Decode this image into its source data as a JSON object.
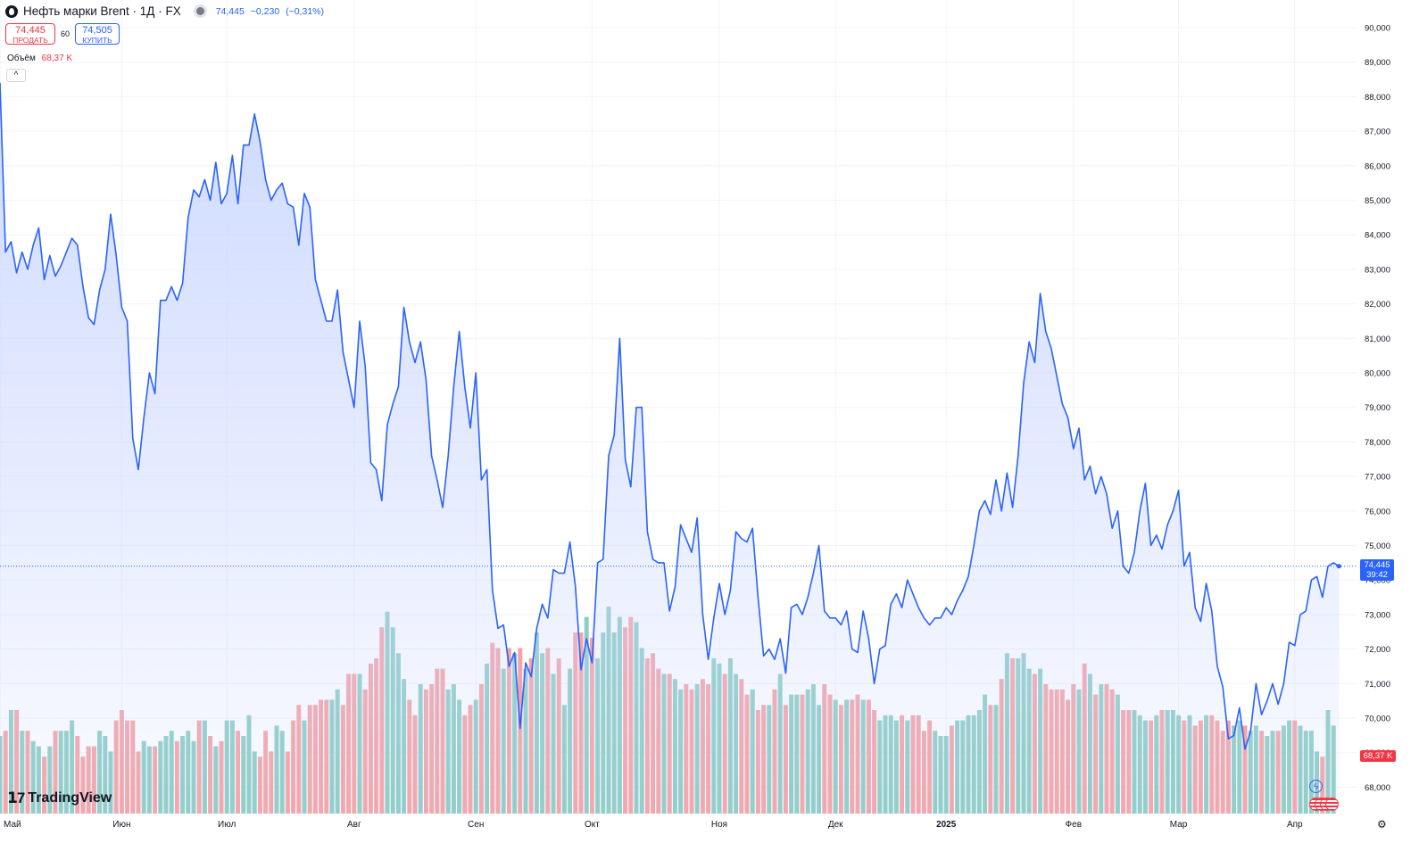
{
  "header": {
    "symbol_title": "Нефть марки Brent · 1Д · FX",
    "last_price": "74,445",
    "change": "−0,230",
    "change_pct": "(−0,31%)"
  },
  "trade": {
    "sell_price": "74,445",
    "sell_label": "ПРОДАТЬ",
    "spread": "60",
    "buy_price": "74,505",
    "buy_label": "КУПИТЬ"
  },
  "volume": {
    "label": "Объём",
    "value": "68,37 K"
  },
  "collapse_label": "^",
  "logo_text": "TradingView",
  "price_label": {
    "value": "74,445",
    "countdown": "39:42"
  },
  "volume_label": "68,37 K",
  "colors": {
    "line": "#2962ff",
    "area_top": "#ccd8ff",
    "vol_up": "#8ccdc4",
    "vol_down": "#f5a3a6",
    "grid": "#f0f3fa"
  },
  "chart_data": {
    "type": "area",
    "title": "Нефть марки Brent",
    "xlabel": "",
    "ylabel": "",
    "ylim": [
      67.2,
      90.3
    ],
    "y_ticks": [
      "90,000",
      "89,000",
      "88,000",
      "87,000",
      "86,000",
      "85,000",
      "84,000",
      "83,000",
      "82,000",
      "81,000",
      "80,000",
      "79,000",
      "78,000",
      "77,000",
      "76,000",
      "75,000",
      "74,000",
      "73,000",
      "72,000",
      "71,000",
      "70,000",
      "69,000",
      "68,000"
    ],
    "x_ticks": [
      {
        "label": "Май",
        "index": 0
      },
      {
        "label": "Июн",
        "index": 22
      },
      {
        "label": "Июл",
        "index": 41
      },
      {
        "label": "Авг",
        "index": 64
      },
      {
        "label": "Сен",
        "index": 86
      },
      {
        "label": "Окт",
        "index": 107
      },
      {
        "label": "Ноя",
        "index": 130
      },
      {
        "label": "Дек",
        "index": 151
      },
      {
        "label": "2025",
        "index": 171
      },
      {
        "label": "Фев",
        "index": 194
      },
      {
        "label": "Мар",
        "index": 213
      },
      {
        "label": "Апр",
        "index": 234
      }
    ],
    "grid": true,
    "series": [
      {
        "values": [
          88.4,
          83.5,
          83.8,
          82.9,
          83.5,
          83.0,
          83.7,
          84.2,
          82.7,
          83.4,
          82.8,
          83.1,
          83.5,
          83.9,
          83.7,
          82.5,
          81.6,
          81.4,
          82.4,
          83.0,
          84.6,
          83.4,
          81.9,
          81.5,
          78.1,
          77.2,
          78.7,
          80.0,
          79.4,
          82.1,
          82.1,
          82.5,
          82.1,
          82.6,
          84.5,
          85.3,
          85.1,
          85.6,
          85.0,
          86.1,
          84.9,
          85.2,
          86.3,
          84.9,
          86.6,
          86.6,
          87.5,
          86.7,
          85.6,
          85.0,
          85.3,
          85.5,
          84.9,
          84.8,
          83.7,
          85.2,
          84.8,
          82.7,
          82.1,
          81.5,
          81.5,
          82.4,
          80.6,
          79.8,
          79.0,
          81.5,
          80.2,
          77.4,
          77.2,
          76.3,
          78.5,
          79.1,
          79.6,
          81.9,
          80.9,
          80.3,
          80.9,
          79.8,
          77.6,
          76.9,
          76.1,
          77.6,
          79.6,
          81.2,
          79.6,
          78.4,
          80.0,
          76.9,
          77.2,
          73.7,
          72.6,
          72.7,
          71.5,
          71.9,
          69.7,
          71.6,
          71.2,
          72.6,
          73.3,
          72.9,
          74.3,
          74.2,
          74.2,
          75.1,
          73.8,
          71.4,
          72.3,
          71.6,
          74.5,
          74.6,
          77.6,
          78.2,
          81.0,
          77.5,
          76.7,
          79.0,
          79.0,
          75.4,
          74.6,
          74.5,
          74.5,
          73.1,
          73.8,
          75.6,
          75.2,
          74.8,
          75.8,
          73.0,
          71.7,
          72.9,
          73.9,
          73.0,
          73.7,
          75.4,
          75.2,
          75.1,
          75.5,
          73.5,
          71.8,
          72.0,
          71.7,
          72.3,
          71.3,
          73.2,
          73.3,
          73.0,
          73.5,
          74.2,
          75.0,
          73.1,
          72.9,
          72.9,
          72.7,
          73.1,
          72.0,
          71.9,
          73.1,
          72.3,
          71.0,
          72.0,
          72.1,
          73.3,
          73.6,
          73.2,
          74.0,
          73.6,
          73.2,
          72.9,
          72.7,
          72.9,
          72.9,
          73.2,
          73.0,
          73.4,
          73.7,
          74.1,
          75.0,
          76.0,
          76.3,
          75.9,
          76.9,
          76.0,
          77.1,
          76.1,
          77.6,
          79.7,
          80.9,
          80.3,
          82.3,
          81.2,
          80.7,
          79.9,
          79.1,
          78.7,
          77.8,
          78.4,
          76.9,
          77.3,
          76.5,
          77.0,
          76.5,
          75.5,
          76.0,
          74.4,
          74.2,
          74.8,
          76.0,
          76.8,
          75.0,
          75.3,
          74.9,
          75.6,
          76.0,
          76.6,
          74.4,
          74.8,
          73.2,
          72.8,
          73.9,
          73.1,
          71.5,
          70.9,
          69.4,
          69.5,
          70.3,
          69.1,
          69.6,
          71.0,
          70.1,
          70.5,
          71.0,
          70.4,
          71.0,
          72.2,
          72.1,
          73.0,
          73.1,
          74.0,
          74.1,
          73.5,
          74.4,
          74.5,
          74.4
        ]
      },
      {
        "name": "Объём",
        "values": [
          15,
          16,
          20,
          20,
          16,
          16,
          14,
          13,
          11,
          13,
          16,
          16,
          16,
          18,
          15,
          11,
          13,
          13,
          16,
          15,
          12,
          18,
          20,
          18,
          18,
          12,
          14,
          13,
          13,
          14,
          15,
          16,
          14,
          15,
          16,
          14,
          18,
          18,
          15,
          13,
          14,
          18,
          18,
          16,
          15,
          19,
          12,
          11,
          16,
          12,
          17,
          16,
          12,
          18,
          21,
          18,
          21,
          21,
          22,
          22,
          22,
          24,
          21,
          27,
          27,
          27,
          24,
          29,
          30,
          36,
          39,
          36,
          31,
          26,
          22,
          19,
          25,
          24,
          25,
          28,
          28,
          24,
          25,
          22,
          19,
          21,
          22,
          25,
          29,
          33,
          32,
          28,
          32,
          31,
          32,
          28,
          30,
          35,
          31,
          32,
          27,
          30,
          21,
          28,
          35,
          35,
          38,
          34,
          30,
          35,
          40,
          35,
          38,
          36,
          38,
          37,
          32,
          30,
          31,
          28,
          27,
          27,
          26,
          24,
          25,
          24,
          25,
          26,
          25,
          30,
          29,
          27,
          30,
          27,
          26,
          23,
          24,
          20,
          21,
          21,
          24,
          27,
          21,
          23,
          23,
          23,
          24,
          25,
          21,
          25,
          23,
          22,
          21,
          22,
          22,
          23,
          22,
          22,
          20,
          18,
          19,
          19,
          18,
          19,
          18,
          19,
          19,
          16,
          18,
          16,
          15,
          15,
          17,
          18,
          18,
          19,
          19,
          20,
          23,
          21,
          21,
          26,
          31,
          30,
          30,
          31,
          28,
          27,
          28,
          25,
          24,
          24,
          24,
          22,
          25,
          24,
          29,
          27,
          23,
          25,
          25,
          24,
          23,
          20,
          20,
          20,
          19,
          18,
          18,
          19,
          20,
          20,
          20,
          19,
          18,
          19,
          17,
          18,
          19,
          19,
          18,
          16,
          18,
          17,
          18,
          17,
          16,
          17,
          16,
          15,
          16,
          16,
          17,
          18,
          18,
          17,
          16,
          16,
          12,
          11,
          20,
          17
        ]
      }
    ]
  }
}
